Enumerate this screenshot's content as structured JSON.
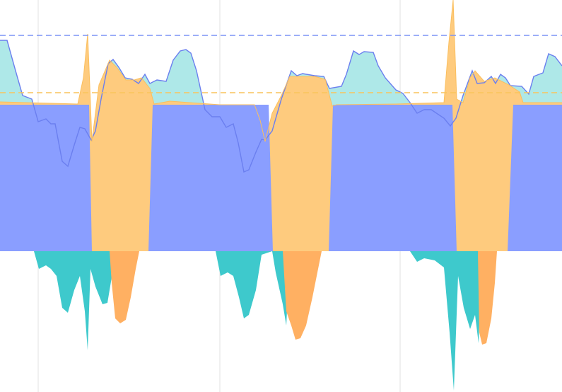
{
  "chart_data": {
    "type": "area",
    "xlim": [
      0,
      795
    ],
    "ylim": [
      -199,
      355
    ],
    "vertical_lines": [
      54,
      311,
      566
    ],
    "reference_lines": [
      {
        "value": 305,
        "color": "#7b93f5"
      },
      {
        "value": 224,
        "color": "#f9c45c"
      }
    ],
    "series": [
      {
        "color": "#aee8e8",
        "stroke": "#6b7fef",
        "x": [
          0,
          10,
          22,
          32,
          45,
          54,
          65,
          72,
          78,
          88,
          96,
          105,
          113,
          120,
          129,
          135,
          143,
          153,
          160,
          168,
          177,
          187,
          196,
          205,
          212,
          222,
          235,
          245,
          255,
          263,
          270,
          278,
          290,
          300,
          311,
          320,
          330,
          337,
          345,
          352,
          362,
          370,
          375,
          385,
          398,
          412,
          420,
          428,
          445,
          458,
          466,
          483,
          490,
          500,
          508,
          515,
          528,
          535,
          545,
          560,
          570,
          580,
          590,
          600,
          610,
          628,
          637,
          645,
          655,
          668,
          675,
          685,
          695,
          701,
          708,
          715,
          722,
          738,
          748,
          755,
          768,
          776,
          785,
          795
        ],
        "values": [
          298,
          298,
          255,
          220,
          215,
          183,
          187,
          180,
          180,
          127,
          120,
          150,
          175,
          173,
          157,
          170,
          215,
          265,
          271,
          260,
          245,
          243,
          237,
          250,
          237,
          242,
          240,
          270,
          283,
          285,
          280,
          255,
          200,
          190,
          190,
          175,
          180,
          153,
          112,
          115,
          140,
          158,
          157,
          170,
          215,
          255,
          248,
          251,
          248,
          247,
          230,
          233,
          250,
          283,
          278,
          282,
          281,
          262,
          245,
          228,
          223,
          210,
          195,
          200,
          200,
          188,
          177,
          188,
          220,
          255,
          237,
          238,
          247,
          237,
          250,
          245,
          234,
          233,
          222,
          247,
          252,
          279,
          275,
          262
        ]
      },
      {
        "color": "#fecb7e",
        "stroke": "#fbbf5e",
        "x": [
          0,
          110,
          118,
          124,
          128,
          130,
          140,
          155,
          165,
          178,
          190,
          200,
          212,
          218,
          240,
          311,
          360,
          368,
          375,
          385,
          398,
          410,
          425,
          445,
          460,
          470,
          476,
          560,
          628,
          635,
          641,
          646,
          655,
          665,
          672,
          685,
          700,
          720,
          735,
          740,
          795
        ],
        "values": [
          211,
          208,
          245,
          307,
          208,
          155,
          235,
          270,
          260,
          242,
          242,
          245,
          230,
          208,
          212,
          207,
          207,
          185,
          155,
          195,
          220,
          247,
          247,
          247,
          243,
          205,
          207,
          208,
          210,
          295,
          355,
          215,
          210,
          245,
          255,
          240,
          245,
          235,
          225,
          210,
          210
        ]
      },
      {
        "color": "#8a9eff",
        "x": [
          0,
          126,
          130,
          210,
          216,
          380,
          386,
          465,
          471,
          640,
          646,
          718,
          726,
          795
        ],
        "values": [
          207,
          207,
          0,
          0,
          207,
          207,
          0,
          0,
          207,
          207,
          0,
          0,
          207,
          207
        ]
      },
      {
        "color": "#3ec9cc",
        "x": [
          0,
          48,
          55,
          65,
          72,
          80,
          88,
          96,
          105,
          113,
          120,
          124,
          128,
          135,
          145,
          152,
          160,
          163,
          305,
          312,
          322,
          330,
          338,
          345,
          352,
          362,
          370,
          385,
          390,
          400,
          405,
          410,
          580,
          590,
          600,
          615,
          628,
          636,
          642,
          648,
          656,
          665,
          672,
          677,
          682,
          795
        ],
        "values": [
          0,
          0,
          -25,
          -20,
          -25,
          -35,
          -80,
          -87,
          -55,
          -35,
          -85,
          -140,
          -25,
          -50,
          -75,
          -73,
          -25,
          0,
          0,
          -35,
          -30,
          -35,
          -65,
          -95,
          -90,
          -55,
          -5,
          0,
          -30,
          -75,
          -105,
          0,
          0,
          -15,
          -10,
          -13,
          -23,
          -115,
          -197,
          -35,
          -80,
          -110,
          -90,
          -130,
          0,
          0
        ]
      },
      {
        "color": "#ffb062",
        "x": [
          0,
          155,
          158,
          163,
          170,
          178,
          185,
          192,
          197,
          400,
          405,
          412,
          418,
          425,
          433,
          442,
          450,
          455,
          676,
          678,
          682,
          688,
          695,
          700,
          703,
          795
        ],
        "values": [
          0,
          0,
          -45,
          -95,
          -102,
          -97,
          -65,
          -25,
          0,
          0,
          -85,
          -105,
          -125,
          -123,
          -105,
          -65,
          -25,
          0,
          0,
          -115,
          -132,
          -130,
          -95,
          -45,
          0,
          0
        ]
      }
    ]
  }
}
